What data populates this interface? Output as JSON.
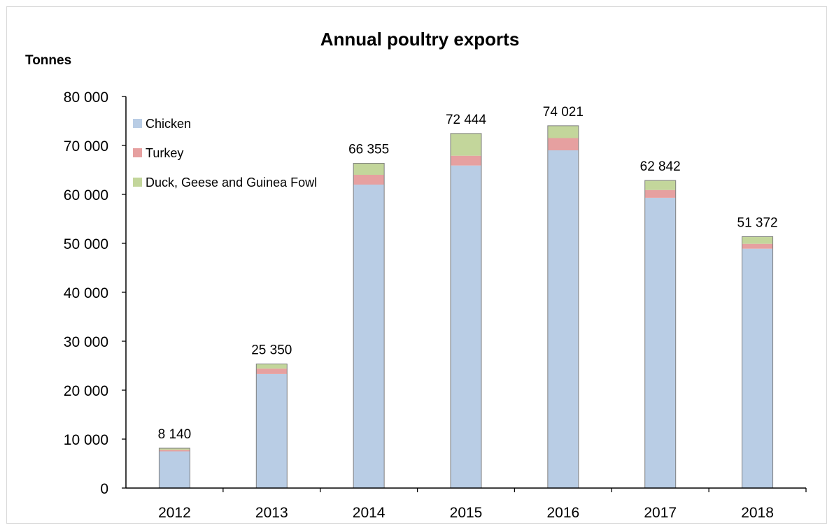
{
  "chart_data": {
    "type": "bar",
    "stacked": true,
    "title": "Annual poultry exports",
    "ylabel": "Tonnes",
    "xlabel": "",
    "categories": [
      "2012",
      "2013",
      "2014",
      "2015",
      "2016",
      "2017",
      "2018"
    ],
    "series": [
      {
        "name": "Chicken",
        "color": "#b9cde5",
        "values": [
          7500,
          23300,
          62000,
          65900,
          69000,
          59300,
          48900
        ]
      },
      {
        "name": "Turkey",
        "color": "#e6a0a0",
        "values": [
          300,
          1100,
          2000,
          2000,
          2500,
          1600,
          1000
        ]
      },
      {
        "name": "Duck, Geese and Guinea Fowl",
        "color": "#c3d69b",
        "values": [
          340,
          950,
          2355,
          4544,
          2521,
          1942,
          1472
        ]
      }
    ],
    "totals": [
      8140,
      25350,
      66355,
      72444,
      74021,
      62842,
      51372
    ],
    "total_labels": [
      "8 140",
      "25 350",
      "66 355",
      "72 444",
      "74 021",
      "62 842",
      "51 372"
    ],
    "ylim": [
      0,
      80000
    ],
    "yticks": [
      0,
      10000,
      20000,
      30000,
      40000,
      50000,
      60000,
      70000,
      80000
    ],
    "ytick_labels": [
      "0",
      "10 000",
      "20 000",
      "30 000",
      "40 000",
      "50 000",
      "60 000",
      "70 000",
      "80 000"
    ],
    "grid": false,
    "legend_position": "top-left, inside plot"
  }
}
